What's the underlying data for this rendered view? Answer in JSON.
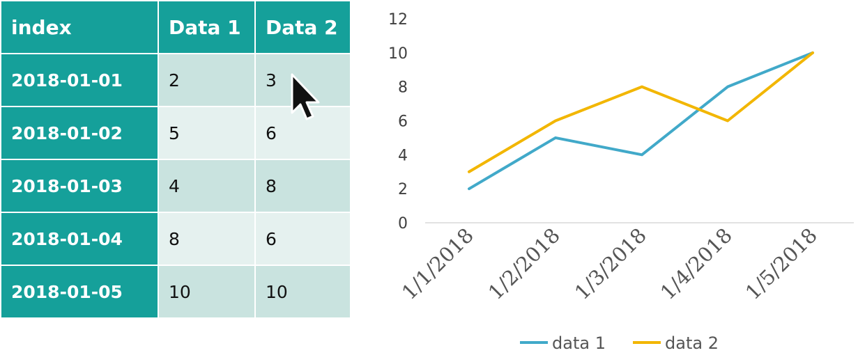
{
  "table": {
    "headers": [
      "index",
      "Data 1",
      "Data 2"
    ],
    "rows": [
      [
        "2018-01-01",
        "2",
        "3"
      ],
      [
        "2018-01-02",
        "5",
        "6"
      ],
      [
        "2018-01-03",
        "4",
        "8"
      ],
      [
        "2018-01-04",
        "8",
        "6"
      ],
      [
        "2018-01-05",
        "10",
        "10"
      ]
    ]
  },
  "chart_data": {
    "type": "line",
    "title": "",
    "xlabel": "",
    "ylabel": "",
    "categories": [
      "1/1/2018",
      "1/2/2018",
      "1/3/2018",
      "1/4/2018",
      "1/5/2018"
    ],
    "ylim": [
      0,
      12
    ],
    "yticks": [
      "0",
      "2",
      "4",
      "6",
      "8",
      "10",
      "12"
    ],
    "grid": false,
    "legend": "bottom",
    "series": [
      {
        "name": "data 1",
        "color": "#41a9c9",
        "values": [
          2,
          5,
          4,
          8,
          10
        ]
      },
      {
        "name": "data 2",
        "color": "#f2b600",
        "values": [
          3,
          6,
          8,
          6,
          10
        ]
      }
    ]
  },
  "colors": {
    "header_bg": "#15a09a",
    "row_odd": "#c9e3df",
    "row_even": "#e5f1ef"
  },
  "cursor": {
    "icon": "arrow-cursor-icon"
  }
}
